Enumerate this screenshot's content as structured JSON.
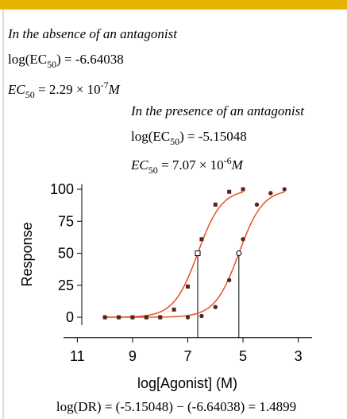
{
  "absence": {
    "heading": "In the absence of an antagonist",
    "log_label": "log(EC",
    "log_sub": "50",
    "log_eq": ") = ",
    "log_ec50": -6.64038,
    "ec_label": "EC",
    "ec_sub": "50",
    "ec_eq": " = ",
    "ec_mantissa": 2.29,
    "ec_times": " × 10",
    "ec_exp": -7,
    "ec_unit": "M"
  },
  "presence": {
    "heading": "In the presence of an antagonist",
    "log_label": "log(EC",
    "log_sub": "50",
    "log_eq": ") = ",
    "log_ec50": -5.15048,
    "ec_label": "EC",
    "ec_sub": "50",
    "ec_eq": " = ",
    "ec_mantissa": 7.07,
    "ec_times": " × 10",
    "ec_exp": -6,
    "ec_unit": "M"
  },
  "chart_data": {
    "type": "scatter",
    "xlabel": "log[Agonist] (M)",
    "ylabel": "Response",
    "xlim": [
      11.5,
      2.5
    ],
    "xticks": [
      11,
      9,
      7,
      5,
      3
    ],
    "ylim": [
      -16,
      104
    ],
    "yticks": [
      0,
      25,
      50,
      75,
      100
    ],
    "curve_color": "#e8502a",
    "marker_color": "#5a2518",
    "series": [
      {
        "marker": "square",
        "x": [
          10,
          9.5,
          9,
          8.5,
          8,
          7.5,
          7,
          6.5,
          6,
          5.5,
          5
        ],
        "values": [
          0,
          0,
          0,
          0,
          0,
          6,
          24,
          61,
          88,
          98,
          100
        ]
      },
      {
        "marker": "circle",
        "x": [
          10,
          9.5,
          9,
          8.5,
          8,
          7,
          6.5,
          6,
          5.5,
          5,
          4.5,
          4,
          3.5
        ],
        "values": [
          0,
          0,
          0,
          0,
          0,
          0,
          1,
          8,
          29,
          61,
          88,
          97,
          100
        ]
      }
    ]
  },
  "dr": {
    "label": "log(DR)",
    "eq": " = (",
    "a": -5.15048,
    "mid": ") − (",
    "b": -6.64038,
    "end": ") = ",
    "result": 1.4899
  }
}
